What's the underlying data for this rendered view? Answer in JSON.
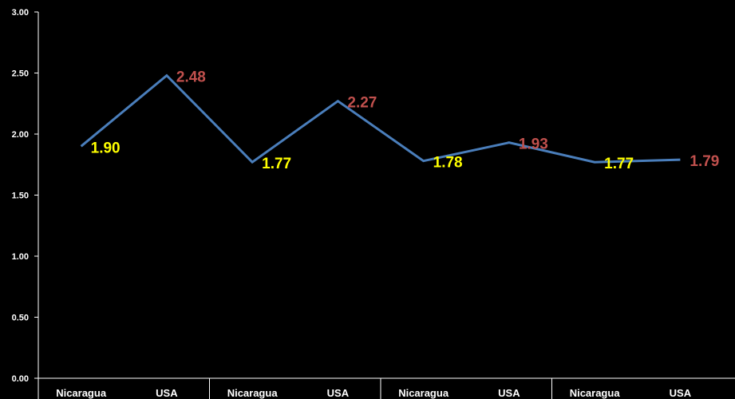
{
  "colors": {
    "background": "#000000",
    "axis": "#ffffff",
    "line": "#4a7ebb",
    "nicaragua_label": "#ffff00",
    "usa_label": "#c0504d"
  },
  "chart_data": {
    "type": "line",
    "title": "",
    "xlabel": "",
    "ylabel": "",
    "ylim": [
      0,
      3
    ],
    "yticks": [
      "0.00",
      "0.50",
      "1.00",
      "1.50",
      "2.00",
      "2.50",
      "3.00"
    ],
    "categories": [
      "Nicaragua",
      "USA",
      "Nicaragua",
      "USA",
      "Nicaragua",
      "USA",
      "Nicaragua",
      "USA"
    ],
    "series": [
      {
        "values": [
          1.9,
          2.48,
          1.77,
          2.27,
          1.78,
          1.93,
          1.77,
          1.79
        ],
        "labels": [
          "1.90",
          "2.48",
          "1.77",
          "2.27",
          "1.78",
          "1.93",
          "1.77",
          "1.79"
        ]
      }
    ],
    "grid": false,
    "legend": "none"
  }
}
